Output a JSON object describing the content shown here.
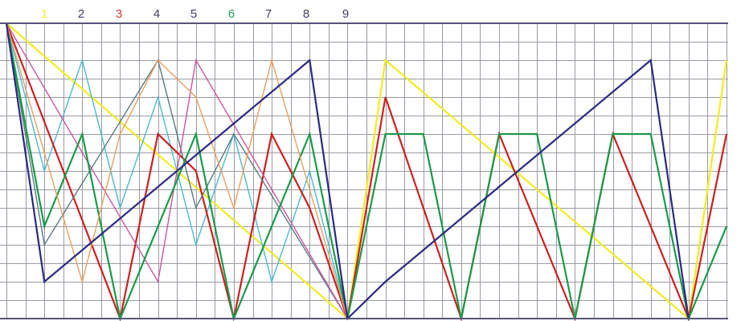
{
  "labels": [
    {
      "text": "1",
      "color": "#ffee33"
    },
    {
      "text": "2",
      "color": "#404060"
    },
    {
      "text": "3",
      "color": "#d03838"
    },
    {
      "text": "4",
      "color": "#404060"
    },
    {
      "text": "5",
      "color": "#404060"
    },
    {
      "text": "6",
      "color": "#1ea050"
    },
    {
      "text": "7",
      "color": "#404060"
    },
    {
      "text": "8",
      "color": "#404060"
    },
    {
      "text": "9",
      "color": "#404060"
    }
  ],
  "colors": {
    "grid": "#9a9aa6",
    "frame": "#555577"
  },
  "lines": [
    {
      "name": "line-1",
      "color": "#f2ec1f",
      "points": [
        [
          0,
          0
        ],
        [
          9,
          8
        ],
        [
          10,
          1
        ],
        [
          18,
          8
        ],
        [
          19,
          1
        ]
      ]
    },
    {
      "name": "line-2",
      "color": "#4ab9d1",
      "points": [
        [
          0,
          0
        ],
        [
          1,
          4
        ],
        [
          2,
          1
        ],
        [
          3,
          5
        ],
        [
          4,
          2
        ],
        [
          5,
          6
        ],
        [
          6,
          3
        ],
        [
          7,
          7
        ],
        [
          8,
          4
        ],
        [
          9,
          8
        ]
      ]
    },
    {
      "name": "line-3",
      "color": "#cc2020",
      "points": [
        [
          0,
          0
        ],
        [
          3,
          8
        ],
        [
          4,
          3
        ],
        [
          5,
          4
        ],
        [
          6,
          8
        ],
        [
          7,
          3
        ],
        [
          8,
          5
        ],
        [
          9,
          8
        ],
        [
          10,
          2
        ],
        [
          12,
          8
        ],
        [
          13,
          3
        ],
        [
          15,
          8
        ],
        [
          16,
          3
        ],
        [
          18,
          8
        ],
        [
          19,
          3
        ]
      ]
    },
    {
      "name": "line-4",
      "color": "#5a7a80",
      "points": [
        [
          0,
          0
        ],
        [
          1,
          6
        ],
        [
          4,
          1
        ],
        [
          5,
          5
        ],
        [
          6,
          3
        ],
        [
          9,
          8
        ]
      ]
    },
    {
      "name": "line-5",
      "color": "#cc55a0",
      "points": [
        [
          0,
          0
        ],
        [
          4,
          7
        ],
        [
          5,
          1
        ],
        [
          9,
          8
        ]
      ]
    },
    {
      "name": "line-6",
      "color": "#1a9a4a",
      "points": [
        [
          0,
          0
        ],
        [
          1,
          5.5
        ],
        [
          2,
          3
        ],
        [
          3,
          8
        ],
        [
          5,
          3
        ],
        [
          6,
          8
        ],
        [
          8,
          3
        ],
        [
          9,
          8
        ],
        [
          10,
          3
        ],
        [
          11,
          3
        ],
        [
          12,
          8
        ],
        [
          13,
          3
        ],
        [
          14,
          3
        ],
        [
          15,
          8
        ],
        [
          16,
          3
        ],
        [
          17,
          3
        ],
        [
          18,
          8
        ],
        [
          19,
          5.5
        ]
      ]
    },
    {
      "name": "line-7",
      "color": "#e8a060",
      "points": [
        [
          0,
          0
        ],
        [
          2,
          7
        ],
        [
          3,
          3
        ],
        [
          4,
          1
        ],
        [
          5,
          2
        ],
        [
          6,
          5
        ],
        [
          7,
          1
        ],
        [
          9,
          8
        ]
      ]
    },
    {
      "name": "line-8",
      "color": "#2a2a80",
      "points": [
        [
          0,
          0
        ],
        [
          1,
          7
        ],
        [
          8,
          1
        ],
        [
          9,
          8
        ],
        [
          10,
          7
        ],
        [
          17,
          1
        ],
        [
          18,
          8
        ]
      ]
    }
  ]
}
